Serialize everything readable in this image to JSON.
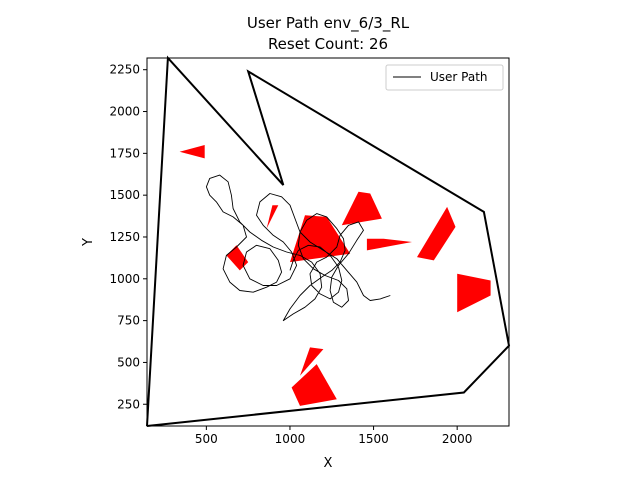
{
  "chart_data": {
    "type": "line",
    "title": "User Path env_6/3_RL",
    "subtitle": "Reset Count: 26",
    "xlabel": "X",
    "ylabel": "Y",
    "xlim": [
      145,
      2310
    ],
    "ylim": [
      120,
      2320
    ],
    "xticks": [
      500,
      1000,
      1500,
      2000
    ],
    "yticks": [
      250,
      500,
      750,
      1000,
      1250,
      1500,
      1750,
      2000,
      2250
    ],
    "legend": {
      "placement": "top-right",
      "entries": [
        {
          "label": "User Path",
          "color": "#000000"
        }
      ]
    },
    "grid": false,
    "boundary": {
      "color": "#000000",
      "points": [
        [
          145,
          120
        ],
        [
          270,
          2320
        ],
        [
          960,
          1560
        ],
        [
          750,
          2240
        ],
        [
          2160,
          1400
        ],
        [
          2310,
          600
        ],
        [
          2040,
          320
        ],
        [
          145,
          120
        ]
      ]
    },
    "obstacles": {
      "color": "#ff0000",
      "polygons": [
        [
          [
            340,
            1760
          ],
          [
            490,
            1800
          ],
          [
            490,
            1720
          ]
        ],
        [
          [
            1000,
            1100
          ],
          [
            1090,
            1380
          ],
          [
            1220,
            1370
          ],
          [
            1360,
            1150
          ]
        ],
        [
          [
            1310,
            1320
          ],
          [
            1410,
            1520
          ],
          [
            1480,
            1510
          ],
          [
            1550,
            1360
          ]
        ],
        [
          [
            1460,
            1240
          ],
          [
            1560,
            1240
          ],
          [
            1730,
            1220
          ],
          [
            1460,
            1170
          ]
        ],
        [
          [
            1760,
            1130
          ],
          [
            1940,
            1430
          ],
          [
            1990,
            1310
          ],
          [
            1860,
            1110
          ]
        ],
        [
          [
            2000,
            800
          ],
          [
            2000,
            1030
          ],
          [
            2200,
            990
          ],
          [
            2200,
            900
          ]
        ],
        [
          [
            860,
            1300
          ],
          [
            895,
            1440
          ],
          [
            930,
            1440
          ]
        ],
        [
          [
            620,
            1140
          ],
          [
            680,
            1200
          ],
          [
            750,
            1100
          ],
          [
            700,
            1050
          ]
        ],
        [
          [
            1060,
            420
          ],
          [
            1120,
            590
          ],
          [
            1200,
            580
          ]
        ],
        [
          [
            1010,
            350
          ],
          [
            1060,
            240
          ],
          [
            1280,
            280
          ],
          [
            1160,
            490
          ]
        ]
      ]
    },
    "series": [
      {
        "name": "User Path",
        "color": "#000000",
        "points": [
          [
            1600,
            900
          ],
          [
            1540,
            880
          ],
          [
            1480,
            870
          ],
          [
            1440,
            900
          ],
          [
            1400,
            980
          ],
          [
            1340,
            1050
          ],
          [
            1280,
            1120
          ],
          [
            1200,
            1170
          ],
          [
            1120,
            1220
          ],
          [
            1060,
            1280
          ],
          [
            1030,
            1360
          ],
          [
            1000,
            1440
          ],
          [
            950,
            1490
          ],
          [
            880,
            1510
          ],
          [
            820,
            1460
          ],
          [
            800,
            1380
          ],
          [
            840,
            1320
          ],
          [
            900,
            1260
          ],
          [
            960,
            1220
          ],
          [
            1010,
            1160
          ],
          [
            1040,
            1080
          ],
          [
            1000,
            1000
          ],
          [
            920,
            960
          ],
          [
            840,
            960
          ],
          [
            760,
            1000
          ],
          [
            720,
            1080
          ],
          [
            740,
            1160
          ],
          [
            800,
            1200
          ],
          [
            880,
            1180
          ],
          [
            930,
            1110
          ],
          [
            950,
            1040
          ],
          [
            920,
            980
          ],
          [
            860,
            950
          ],
          [
            780,
            920
          ],
          [
            700,
            930
          ],
          [
            640,
            980
          ],
          [
            600,
            1060
          ],
          [
            620,
            1140
          ],
          [
            680,
            1190
          ],
          [
            740,
            1250
          ],
          [
            720,
            1320
          ],
          [
            660,
            1370
          ],
          [
            600,
            1400
          ],
          [
            560,
            1460
          ],
          [
            520,
            1500
          ],
          [
            500,
            1550
          ],
          [
            520,
            1600
          ],
          [
            580,
            1620
          ],
          [
            630,
            1580
          ],
          [
            650,
            1500
          ],
          [
            660,
            1420
          ],
          [
            700,
            1340
          ],
          [
            760,
            1280
          ],
          [
            830,
            1230
          ],
          [
            900,
            1190
          ],
          [
            980,
            1160
          ],
          [
            1060,
            1140
          ],
          [
            1130,
            1100
          ],
          [
            1180,
            1030
          ],
          [
            1190,
            950
          ],
          [
            1150,
            880
          ],
          [
            1090,
            830
          ],
          [
            1020,
            790
          ],
          [
            960,
            750
          ],
          [
            1000,
            820
          ],
          [
            1060,
            900
          ],
          [
            1120,
            960
          ],
          [
            1190,
            1010
          ],
          [
            1250,
            1050
          ],
          [
            1300,
            1100
          ],
          [
            1330,
            1170
          ],
          [
            1320,
            1240
          ],
          [
            1280,
            1300
          ],
          [
            1220,
            1370
          ],
          [
            1160,
            1390
          ],
          [
            1100,
            1350
          ],
          [
            1060,
            1280
          ],
          [
            1050,
            1200
          ],
          [
            1080,
            1120
          ],
          [
            1140,
            1060
          ],
          [
            1210,
            1020
          ],
          [
            1290,
            990
          ],
          [
            1340,
            940
          ],
          [
            1350,
            870
          ],
          [
            1310,
            830
          ],
          [
            1260,
            860
          ],
          [
            1240,
            930
          ],
          [
            1250,
            1010
          ],
          [
            1290,
            1080
          ],
          [
            1350,
            1150
          ],
          [
            1400,
            1230
          ],
          [
            1440,
            1290
          ],
          [
            1410,
            1340
          ],
          [
            1350,
            1320
          ],
          [
            1300,
            1260
          ],
          [
            1280,
            1190
          ],
          [
            1220,
            1130
          ],
          [
            1160,
            1100
          ],
          [
            1120,
            1030
          ],
          [
            1130,
            960
          ],
          [
            1180,
            910
          ],
          [
            1240,
            880
          ],
          [
            1290,
            920
          ],
          [
            1310,
            990
          ],
          [
            1290,
            1070
          ],
          [
            1240,
            1140
          ],
          [
            1180,
            1190
          ],
          [
            1110,
            1200
          ],
          [
            1050,
            1170
          ],
          [
            1020,
            1110
          ],
          [
            1000,
            1050
          ]
        ]
      }
    ]
  }
}
